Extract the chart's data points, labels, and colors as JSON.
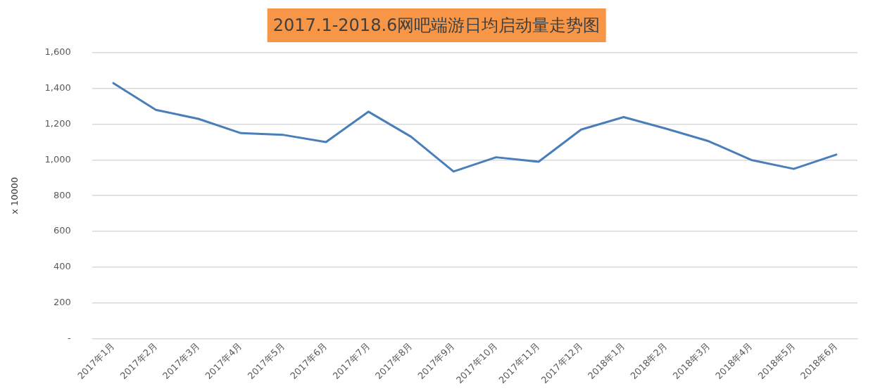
{
  "chart_data": {
    "type": "line",
    "title": "2017.1-2018.6网吧端游日均启动量走势图",
    "ylabel": "x 10000",
    "categories": [
      "2017年1月",
      "2017年2月",
      "2017年3月",
      "2017年4月",
      "2017年5月",
      "2017年6月",
      "2017年7月",
      "2017年8月",
      "2017年9月",
      "2017年10月",
      "2017年11月",
      "2017年12月",
      "2018年1月",
      "2018年2月",
      "2018年3月",
      "2018年4月",
      "2018年5月",
      "2018年6月"
    ],
    "series": [
      {
        "color": "#4a7ebb",
        "values": [
          1430,
          1280,
          1230,
          1150,
          1140,
          1100,
          1270,
          1130,
          935,
          1015,
          990,
          1170,
          1240,
          1175,
          1105,
          1000,
          950,
          1030
        ]
      }
    ],
    "ylim": [
      0,
      1600
    ],
    "yticks": [
      {
        "value": 0,
        "label": "-"
      },
      200,
      400,
      600,
      800,
      {
        "value": 1000,
        "label": "1,000"
      },
      {
        "value": 1200,
        "label": "1,200"
      },
      {
        "value": 1400,
        "label": "1,400"
      },
      {
        "value": 1600,
        "label": "1,600"
      }
    ],
    "grid": "y",
    "legend": false,
    "marker": "none",
    "line_style": "solid"
  }
}
